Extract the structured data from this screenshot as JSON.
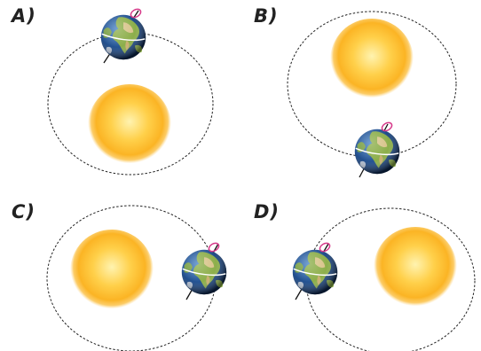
{
  "panels": [
    {
      "label": "A)"
    },
    {
      "label": "B)"
    },
    {
      "label": "C)"
    },
    {
      "label": "D)"
    }
  ],
  "colors": {
    "orbit": "#222222",
    "sun_core": "#fff0a0",
    "sun_mid": "#ffc530",
    "sun_edge": "#f7a81a",
    "ocean": "#2a5a9a",
    "land": "#8cae4a",
    "desert": "#d8c48a",
    "axis": "#111111",
    "rotation_arrow": "#d63a8a"
  },
  "icons": {
    "sun": "sun-icon",
    "earth": "earth-globe-icon"
  }
}
